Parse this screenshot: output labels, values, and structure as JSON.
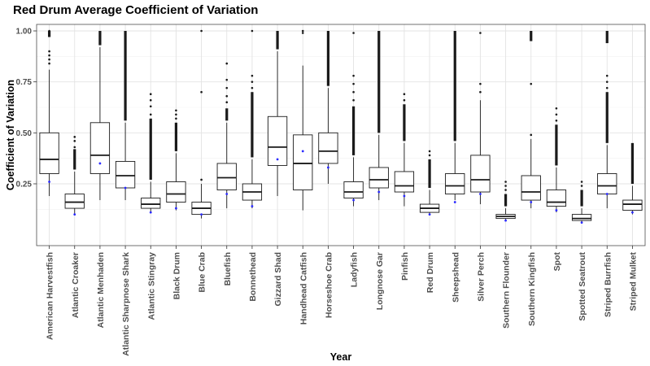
{
  "chart_data": {
    "type": "box",
    "title": "Red Drum Average Coefficient of Variation",
    "xlabel": "Year",
    "ylabel": "Coefficient of Variation",
    "ylim": [
      0.0,
      1.02
    ],
    "yticks": [
      0.25,
      0.5,
      0.75,
      1.0
    ],
    "ytick_labels": [
      "0.25",
      "0.50",
      "0.75",
      "1.00"
    ],
    "grid": true,
    "legend": "none",
    "categories": [
      "American Harvestfish",
      "Atlantic Croaker",
      "Atlantic Menhaden",
      "Atlantic Sharpnose Shark",
      "Atlantic Stingray",
      "Black Drum",
      "Blue Crab",
      "Bluefish",
      "Bonnethead",
      "Gizzard Shad",
      "Handhead Catfish",
      "Horseshoe Crab",
      "Ladyfish",
      "Longnose Gar",
      "Pinfish",
      "Red Drum",
      "Sheepshead",
      "Silver Perch",
      "Southern Flounder",
      "Southern Kingfish",
      "Spot",
      "Spotted Seatrout",
      "Striped Burrfish",
      "Striped Mulket"
    ],
    "boxes": [
      {
        "low": 0.19,
        "q1": 0.3,
        "median": 0.37,
        "q3": 0.5,
        "high": 0.81,
        "mean": 0.26,
        "outliers": [
          0.84,
          0.86,
          0.88,
          0.9,
          0.99,
          1.0
        ],
        "dense_from": 0.97
      },
      {
        "low": 0.1,
        "q1": 0.13,
        "median": 0.16,
        "q3": 0.2,
        "high": 0.31,
        "mean": 0.1,
        "outliers": [
          0.43,
          0.46,
          0.48
        ],
        "dense_from": 0.32,
        "dense_to": 0.42
      },
      {
        "low": 0.17,
        "q1": 0.3,
        "median": 0.39,
        "q3": 0.55,
        "high": 0.92,
        "mean": 0.35,
        "outliers": [],
        "dense_from": 0.93
      },
      {
        "low": 0.17,
        "q1": 0.23,
        "median": 0.29,
        "q3": 0.36,
        "high": 0.55,
        "mean": 0.23,
        "outliers": [],
        "dense_from": 0.56
      },
      {
        "low": 0.11,
        "q1": 0.13,
        "median": 0.15,
        "q3": 0.18,
        "high": 0.26,
        "mean": 0.11,
        "outliers": [
          0.59,
          0.63,
          0.66,
          0.69
        ],
        "dense_from": 0.27,
        "dense_to": 0.57
      },
      {
        "low": 0.12,
        "q1": 0.16,
        "median": 0.2,
        "q3": 0.26,
        "high": 0.4,
        "mean": 0.13,
        "outliers": [
          0.57,
          0.59,
          0.61
        ],
        "dense_from": 0.41,
        "dense_to": 0.55
      },
      {
        "low": 0.08,
        "q1": 0.1,
        "median": 0.13,
        "q3": 0.16,
        "high": 0.25,
        "mean": 0.1,
        "outliers": [
          0.27,
          0.7,
          1.0
        ],
        "dense_from": null
      },
      {
        "low": 0.13,
        "q1": 0.22,
        "median": 0.28,
        "q3": 0.35,
        "high": 0.55,
        "mean": 0.2,
        "outliers": [
          0.65,
          0.68,
          0.72,
          0.76,
          0.84
        ],
        "dense_from": 0.56,
        "dense_to": 0.62
      },
      {
        "low": 0.13,
        "q1": 0.17,
        "median": 0.21,
        "q3": 0.25,
        "high": 0.37,
        "mean": 0.14,
        "outliers": [
          0.72,
          0.75,
          0.78,
          1.0
        ],
        "dense_from": 0.38,
        "dense_to": 0.7
      },
      {
        "low": 0.19,
        "q1": 0.34,
        "median": 0.43,
        "q3": 0.58,
        "high": 0.9,
        "mean": 0.37,
        "outliers": [],
        "dense_from": 0.91
      },
      {
        "low": 0.12,
        "q1": 0.22,
        "median": 0.35,
        "q3": 0.49,
        "high": 0.83,
        "mean": 0.41,
        "outliers": [
          0.99,
          1.0
        ],
        "dense_from": null
      },
      {
        "low": 0.25,
        "q1": 0.35,
        "median": 0.41,
        "q3": 0.5,
        "high": 0.72,
        "mean": 0.33,
        "outliers": [],
        "dense_from": 0.73
      },
      {
        "low": 0.14,
        "q1": 0.18,
        "median": 0.21,
        "q3": 0.26,
        "high": 0.38,
        "mean": 0.17,
        "outliers": [
          0.66,
          0.7,
          0.74,
          0.78,
          0.99
        ],
        "dense_from": 0.39,
        "dense_to": 0.63
      },
      {
        "low": 0.17,
        "q1": 0.23,
        "median": 0.27,
        "q3": 0.33,
        "high": 0.49,
        "mean": 0.21,
        "outliers": [],
        "dense_from": 0.5
      },
      {
        "low": 0.14,
        "q1": 0.21,
        "median": 0.24,
        "q3": 0.31,
        "high": 0.45,
        "mean": 0.19,
        "outliers": [
          0.66,
          0.69
        ],
        "dense_from": 0.46,
        "dense_to": 0.64
      },
      {
        "low": 0.1,
        "q1": 0.11,
        "median": 0.13,
        "q3": 0.15,
        "high": 0.22,
        "mean": 0.1,
        "outliers": [
          0.39,
          0.41
        ],
        "dense_from": 0.23,
        "dense_to": 0.37
      },
      {
        "low": 0.17,
        "q1": 0.2,
        "median": 0.24,
        "q3": 0.3,
        "high": 0.45,
        "mean": 0.16,
        "outliers": [],
        "dense_from": 0.46
      },
      {
        "low": 0.15,
        "q1": 0.21,
        "median": 0.27,
        "q3": 0.39,
        "high": 0.66,
        "mean": 0.2,
        "outliers": [
          0.7,
          0.74,
          0.99
        ],
        "dense_from": null
      },
      {
        "low": 0.07,
        "q1": 0.08,
        "median": 0.09,
        "q3": 0.1,
        "high": 0.13,
        "mean": 0.07,
        "outliers": [
          0.22,
          0.24,
          0.26
        ],
        "dense_from": 0.14,
        "dense_to": 0.2
      },
      {
        "low": 0.13,
        "q1": 0.17,
        "median": 0.21,
        "q3": 0.29,
        "high": 0.47,
        "mean": 0.16,
        "outliers": [
          0.49,
          0.74
        ],
        "dense_from": 0.95
      },
      {
        "low": 0.11,
        "q1": 0.14,
        "median": 0.16,
        "q3": 0.22,
        "high": 0.33,
        "mean": 0.12,
        "outliers": [
          0.56,
          0.59,
          0.62
        ],
        "dense_from": 0.34,
        "dense_to": 0.54
      },
      {
        "low": 0.06,
        "q1": 0.07,
        "median": 0.08,
        "q3": 0.1,
        "high": 0.13,
        "mean": 0.06,
        "outliers": [
          0.24,
          0.26
        ],
        "dense_from": 0.14,
        "dense_to": 0.22
      },
      {
        "low": 0.13,
        "q1": 0.2,
        "median": 0.24,
        "q3": 0.3,
        "high": 0.44,
        "mean": 0.2,
        "outliers": [
          0.72,
          0.75,
          0.78
        ],
        "dense_from": 0.45,
        "dense_to": 0.7,
        "dense2_from": 0.94
      },
      {
        "low": 0.1,
        "q1": 0.12,
        "median": 0.15,
        "q3": 0.17,
        "high": 0.24,
        "mean": 0.11,
        "outliers": [],
        "dense_from": 0.25,
        "dense_to": 0.45
      }
    ]
  }
}
